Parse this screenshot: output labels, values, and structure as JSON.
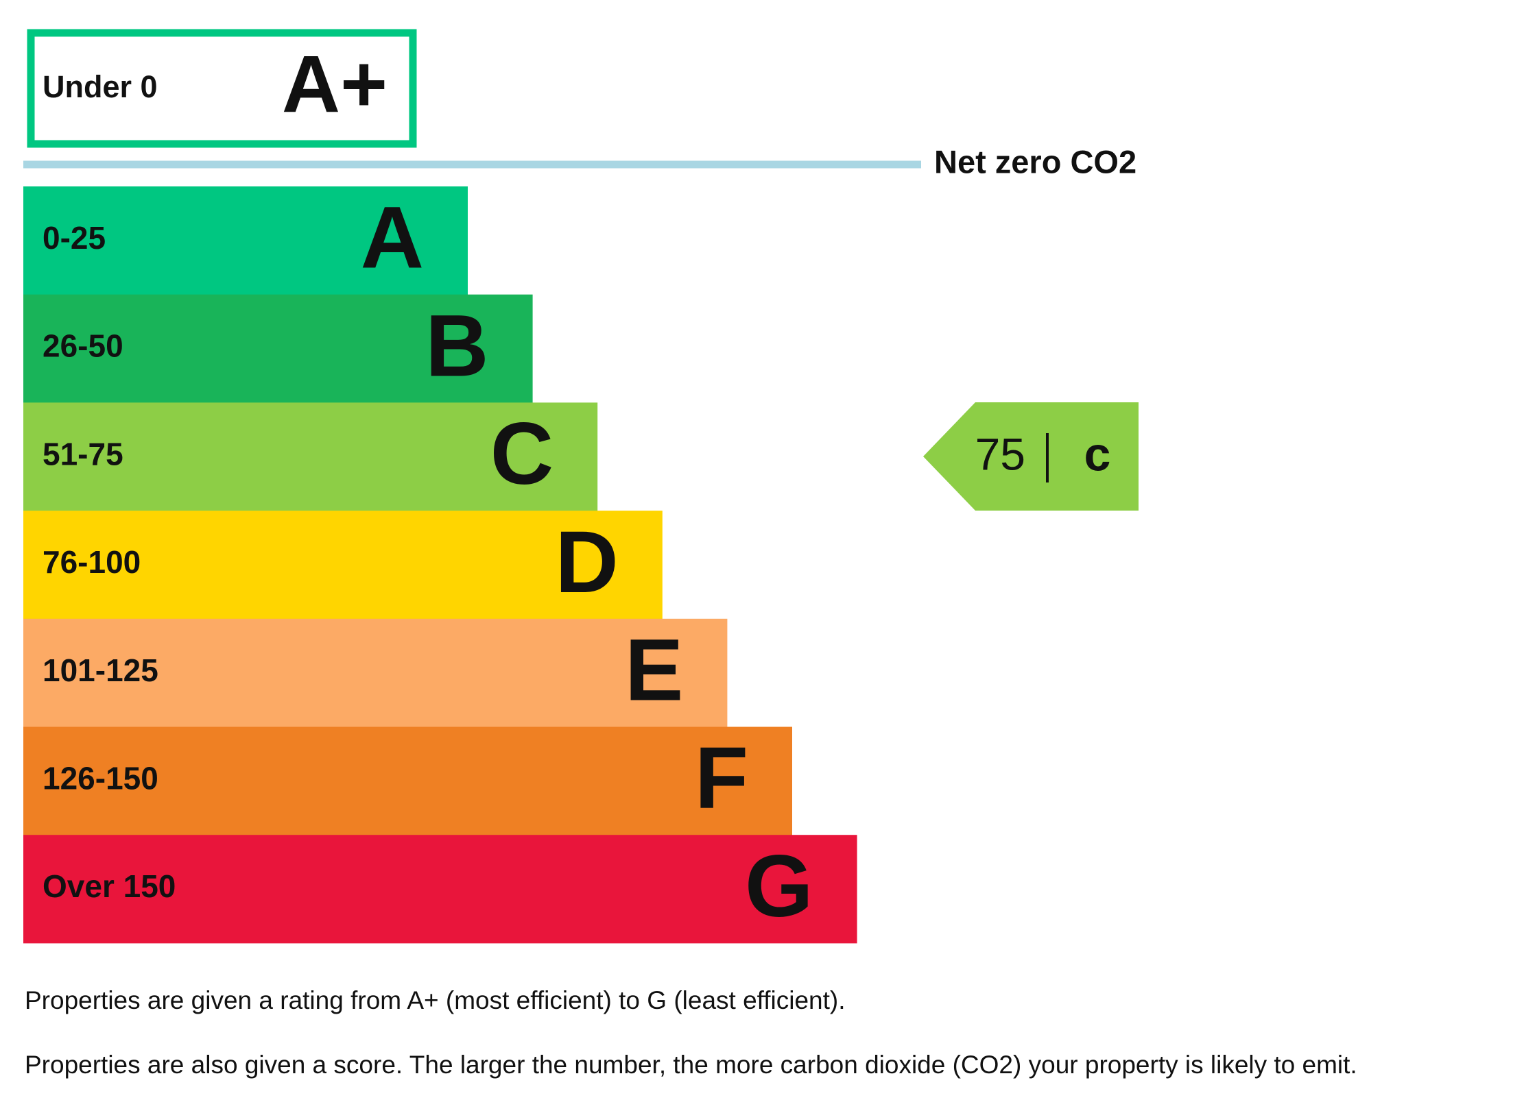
{
  "header": {
    "label": "Under 0",
    "grade": "A+"
  },
  "net_zero": "Net zero CO2",
  "bands": [
    {
      "range": "0-25",
      "grade": "A",
      "color": "#00c781"
    },
    {
      "range": "26-50",
      "grade": "B",
      "color": "#19b459"
    },
    {
      "range": "51-75",
      "grade": "C",
      "color": "#8dce46"
    },
    {
      "range": "76-100",
      "grade": "D",
      "color": "#ffd500"
    },
    {
      "range": "101-125",
      "grade": "E",
      "color": "#fcaa65"
    },
    {
      "range": "126-150",
      "grade": "F",
      "color": "#ef8023"
    },
    {
      "range": "Over 150",
      "grade": "G",
      "color": "#e9153b"
    }
  ],
  "current": {
    "score": "75",
    "grade": "c",
    "color": "#8dce46"
  },
  "notes": [
    "Properties are given a rating from A+ (most efficient) to G (least efficient).",
    "Properties are also given a score. The larger the number, the more carbon dioxide (CO2) your property is likely to emit."
  ]
}
